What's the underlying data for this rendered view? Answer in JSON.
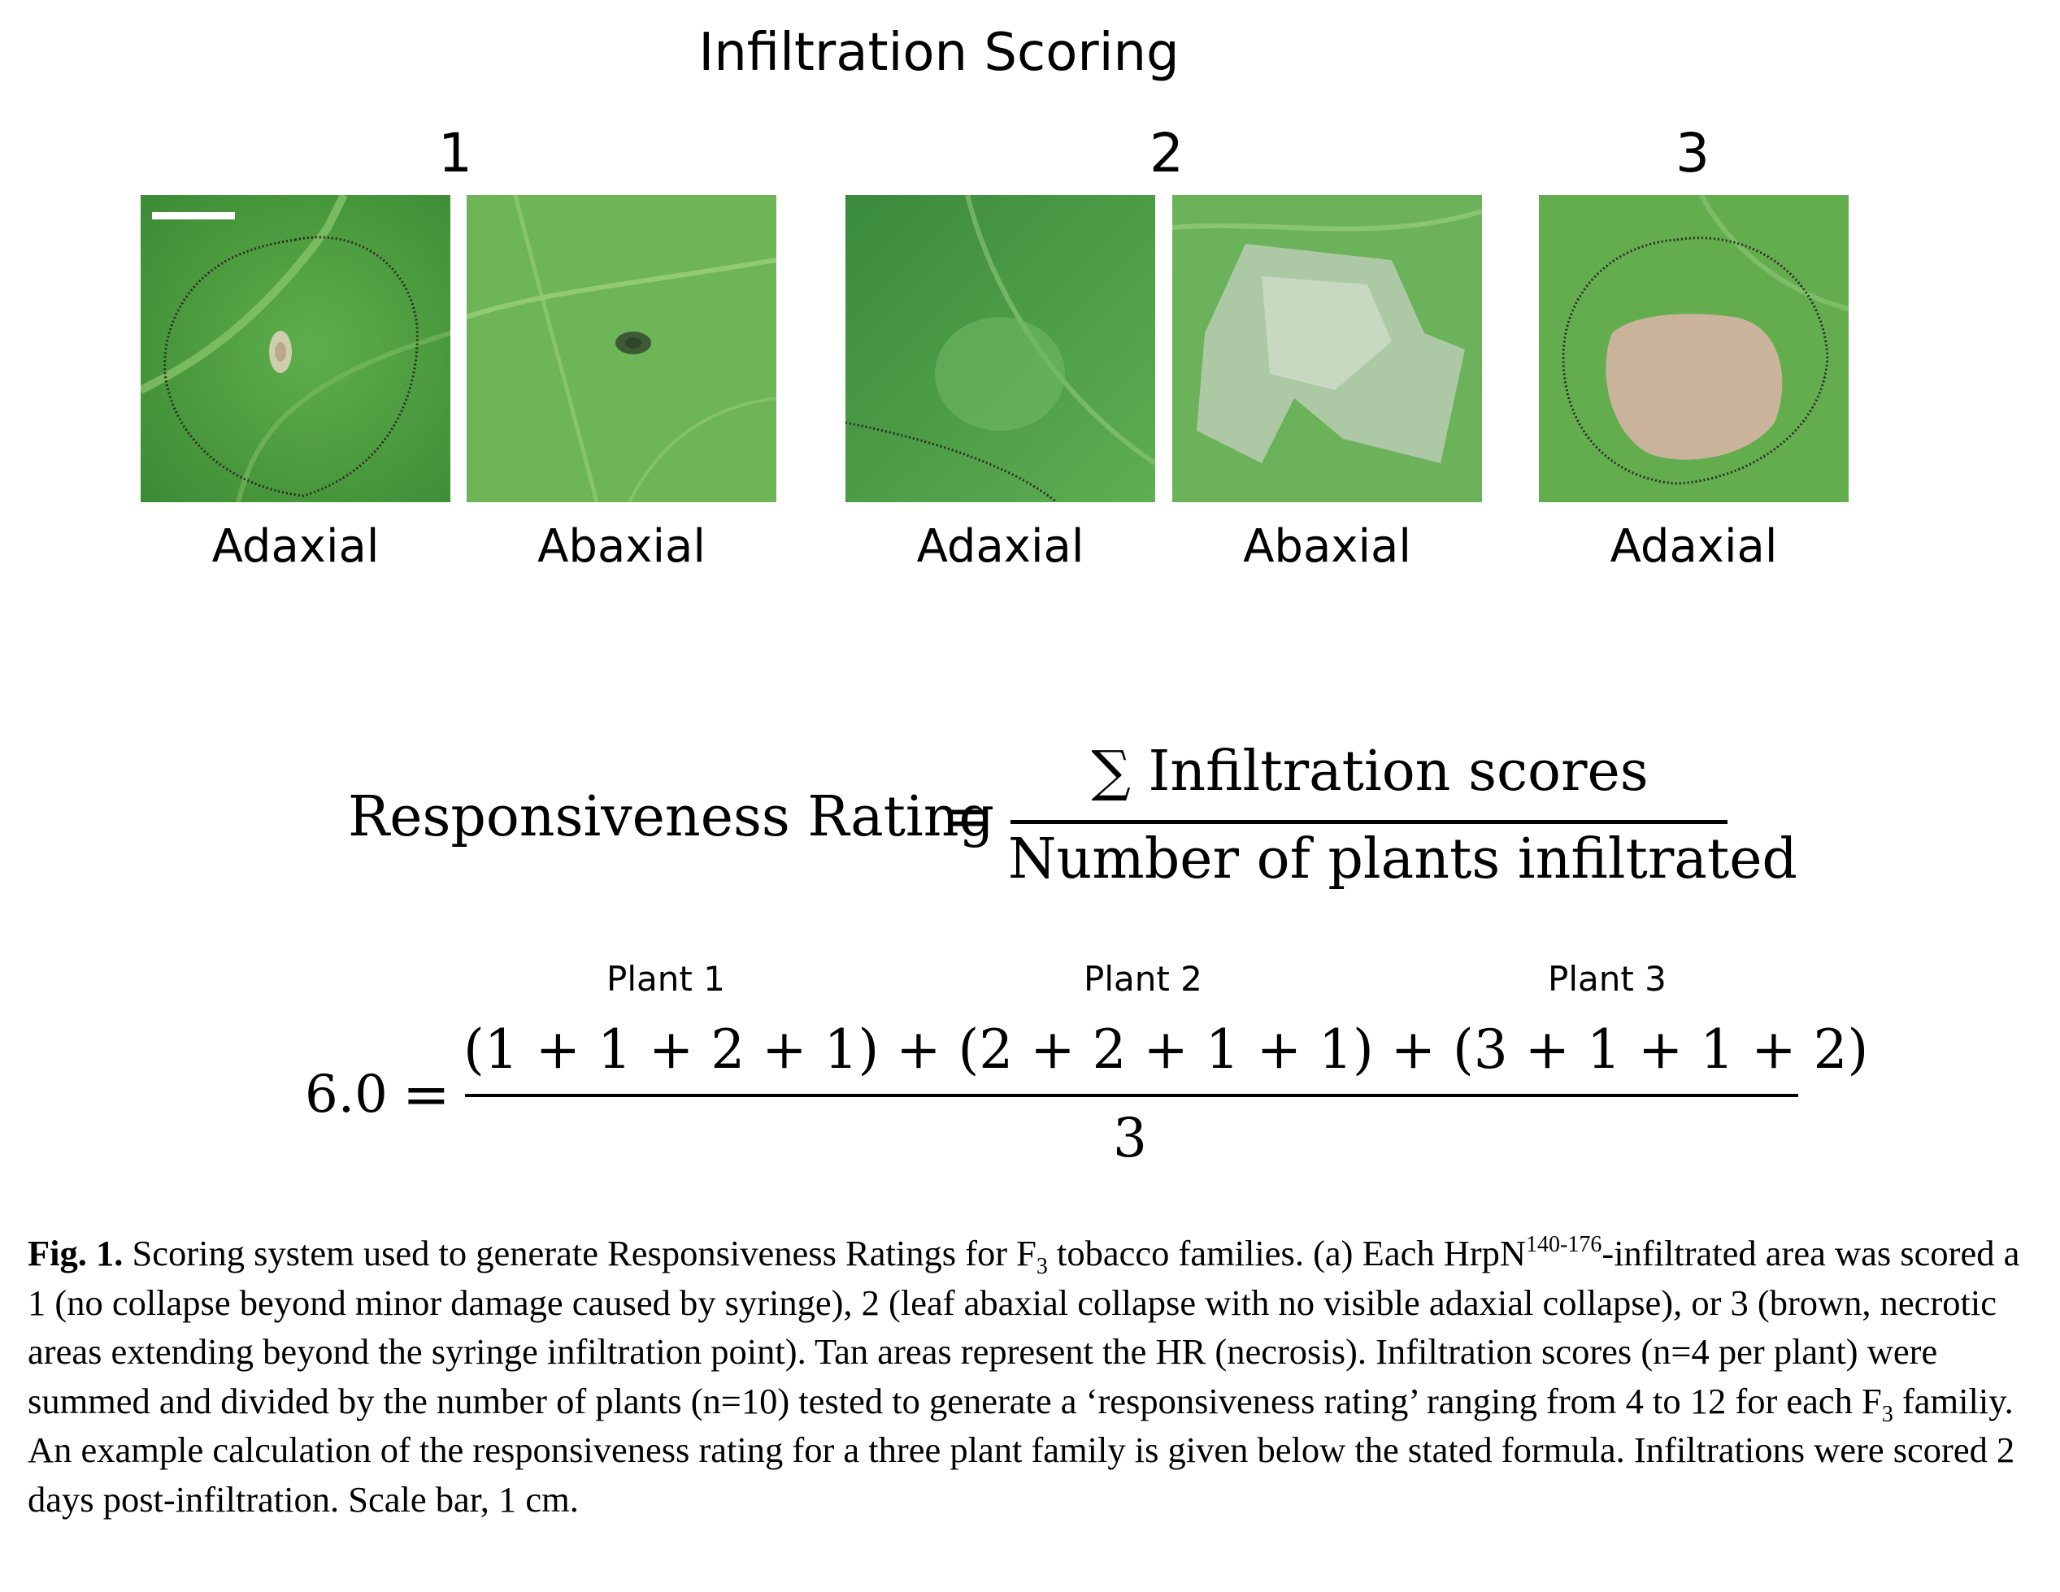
{
  "figure_title": "Infiltration Scoring",
  "scores": [
    "1",
    "2",
    "3"
  ],
  "panels": [
    {
      "label": "Adaxial"
    },
    {
      "label": "Abaxial"
    },
    {
      "label": "Adaxial"
    },
    {
      "label": "Abaxial"
    },
    {
      "label": "Adaxial"
    }
  ],
  "formula": {
    "lhs": "Responsiveness Rating",
    "equals": "=",
    "numerator": "∑ Infiltration scores",
    "denominator": "Number of plants infiltrated"
  },
  "example": {
    "plant_labels": [
      "Plant 1",
      "Plant 2",
      "Plant 3"
    ],
    "result": "6.0",
    "equals": "=",
    "numerator": "(1 + 1 + 2 + 1) + (2 + 2 + 1 + 1) + (3 + 1 + 1 + 2)",
    "denominator": "3"
  },
  "caption": {
    "label": "Fig. 1.",
    "t1": " Scoring system used to generate Responsiveness Ratings for F",
    "sub1": "3",
    "t2": " tobacco families. (a) Each HrpN",
    "sup1": "140-176",
    "t3": "-infiltrated area was scored a 1 (no collapse beyond minor damage caused by syringe), 2 (leaf abaxial collapse with no visible adaxial collapse), or 3 (brown, necrotic areas extending beyond the syringe infiltration point). Tan areas represent the HR (necrosis). Infiltration scores (n=4 per plant) were summed and divided by the number of plants (n=10) tested to generate a ‘responsiveness rating’ ranging from 4 to 12 for each F",
    "sub2": "3",
    "t4": " familiy. An example calculation of the responsiveness rating for a three plant family is given below the stated formula. Infiltrations were scored 2 days post-infiltration. Scale bar, 1 cm."
  },
  "colors": {
    "leaf_dark": "#3f8f3a",
    "leaf_mid": "#5aa84a",
    "leaf_light": "#7fbf66",
    "necrosis_tan": "#c9b39a",
    "marker_ink": "#2a2a22"
  }
}
